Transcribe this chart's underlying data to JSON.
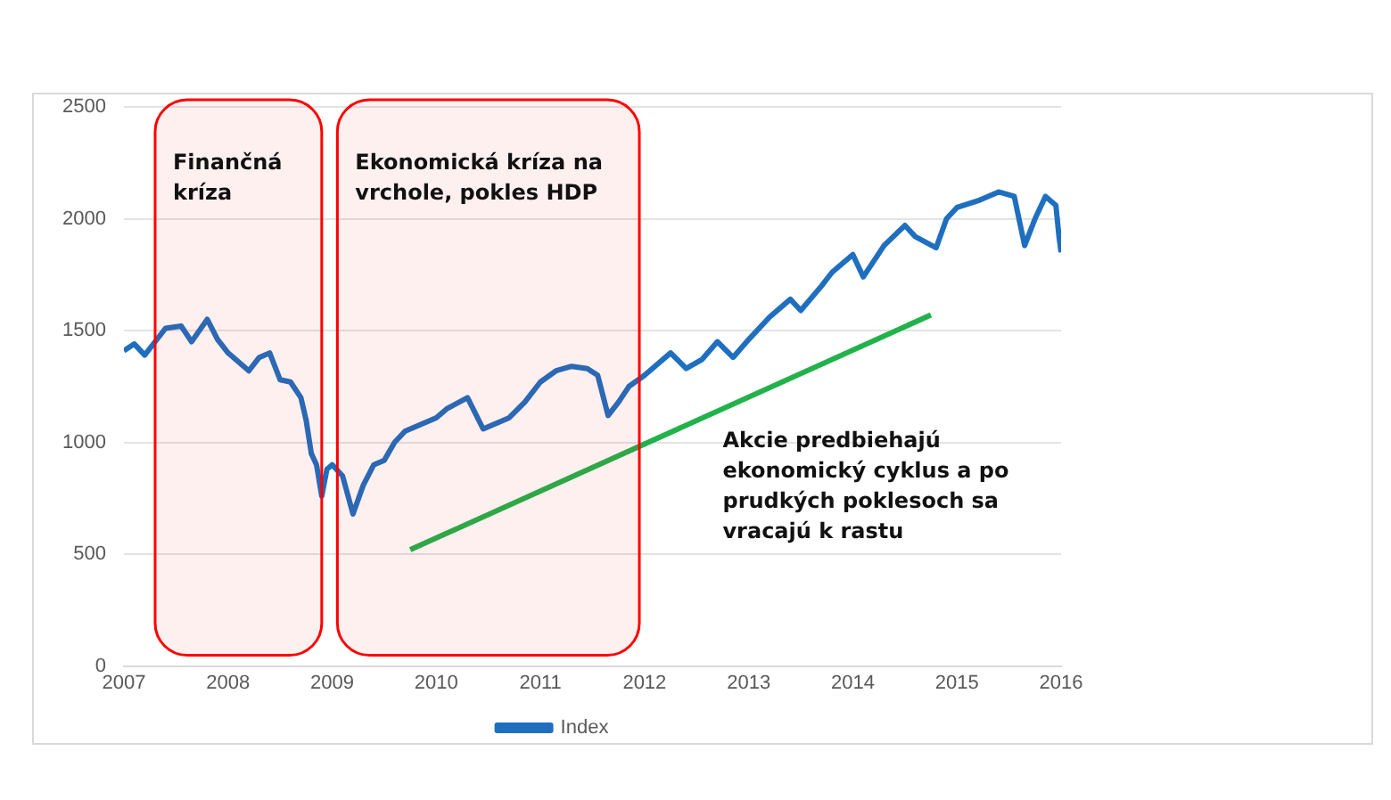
{
  "chart_data": {
    "type": "line",
    "x": [
      2007.0,
      2007.1,
      2007.2,
      2007.4,
      2007.55,
      2007.65,
      2007.8,
      2007.9,
      2008.0,
      2008.2,
      2008.3,
      2008.4,
      2008.5,
      2008.6,
      2008.7,
      2008.75,
      2008.8,
      2008.85,
      2008.9,
      2008.95,
      2009.0,
      2009.1,
      2009.2,
      2009.3,
      2009.4,
      2009.5,
      2009.6,
      2009.7,
      2009.85,
      2010.0,
      2010.1,
      2010.3,
      2010.45,
      2010.55,
      2010.7,
      2010.85,
      2011.0,
      2011.15,
      2011.3,
      2011.45,
      2011.55,
      2011.65,
      2011.75,
      2011.85,
      2012.0,
      2012.25,
      2012.4,
      2012.55,
      2012.7,
      2012.85,
      2013.0,
      2013.2,
      2013.4,
      2013.5,
      2013.7,
      2013.8,
      2014.0,
      2014.1,
      2014.3,
      2014.5,
      2014.6,
      2014.8,
      2014.9,
      2015.0,
      2015.2,
      2015.4,
      2015.55,
      2015.65,
      2015.75,
      2015.85,
      2015.95,
      2015.98,
      2016.0
    ],
    "series": [
      {
        "name": "Index",
        "color": "#1f6fbf",
        "values": [
          1410,
          1440,
          1390,
          1510,
          1520,
          1450,
          1550,
          1460,
          1400,
          1320,
          1380,
          1400,
          1280,
          1270,
          1200,
          1100,
          950,
          900,
          760,
          880,
          900,
          850,
          680,
          810,
          900,
          920,
          1000,
          1050,
          1080,
          1110,
          1150,
          1200,
          1060,
          1080,
          1110,
          1180,
          1270,
          1320,
          1340,
          1330,
          1300,
          1120,
          1180,
          1250,
          1300,
          1400,
          1330,
          1370,
          1450,
          1380,
          1460,
          1560,
          1640,
          1590,
          1700,
          1760,
          1840,
          1740,
          1880,
          1970,
          1920,
          1870,
          2000,
          2050,
          2080,
          2120,
          2100,
          1880,
          2000,
          2100,
          2060,
          1920,
          1850
        ]
      },
      {
        "type": "line",
        "x": [
          2009.75,
          2014.75
        ],
        "color": "#22b24c",
        "values": [
          520,
          1570
        ]
      }
    ],
    "xlim": [
      2007,
      2016
    ],
    "xticks": [
      2007,
      2008,
      2009,
      2010,
      2011,
      2012,
      2013,
      2014,
      2015,
      2016
    ],
    "ylim": [
      0,
      2500
    ],
    "yticks": [
      0,
      500,
      1000,
      1500,
      2000,
      2500
    ],
    "grid": "y",
    "legend": "bottom",
    "marker": "none",
    "line_style": "solid",
    "bands": [
      {
        "axis": "x",
        "from": 2007.3,
        "to": 2008.9,
        "label": "Finančná kríza",
        "color": "#ff0000"
      },
      {
        "axis": "x",
        "from": 2009.05,
        "to": 2011.95,
        "label": "Ekonomická kríza na vrchole, pokles HDP",
        "color": "#ff0000"
      }
    ],
    "annotations": [
      "Akcie predbiehajú ekonomický cyklus a po prudkých poklesoch sa vracajú k rastu"
    ]
  }
}
